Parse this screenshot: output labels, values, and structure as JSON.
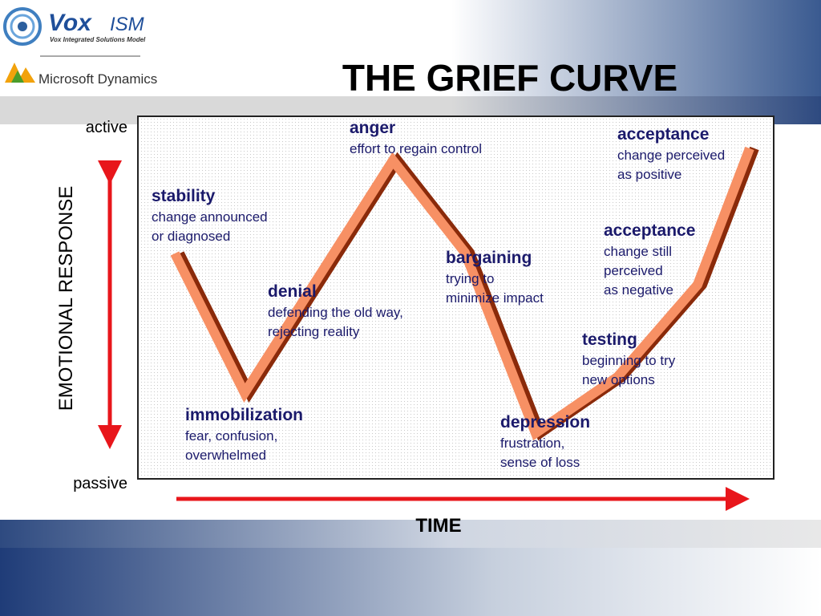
{
  "header": {
    "logo_name": "Vox",
    "logo_suffix": "ISM",
    "logo_tagline": "Vox Integrated Solutions Model",
    "partner": "Microsoft Dynamics",
    "title": "THE GRIEF CURVE"
  },
  "axes": {
    "top_label": "active",
    "bottom_label": "passive",
    "vertical_label": "EMOTIONAL RESPONSE",
    "horizontal_label": "TIME"
  },
  "stages": [
    {
      "name": "stability",
      "description": [
        "change announced",
        "or diagnosed"
      ]
    },
    {
      "name": "immobilization",
      "description": [
        "fear, confusion,",
        "overwhelmed"
      ]
    },
    {
      "name": "denial",
      "description": [
        "defending the old way,",
        "rejecting reality"
      ]
    },
    {
      "name": "anger",
      "description": [
        "effort to regain control"
      ]
    },
    {
      "name": "bargaining",
      "description": [
        "trying to",
        "minimize impact"
      ]
    },
    {
      "name": "depression",
      "description": [
        "frustration,",
        "sense of loss"
      ]
    },
    {
      "name": "testing",
      "description": [
        "beginning to try",
        "new options"
      ]
    },
    {
      "name": "acceptance",
      "description": [
        "change still",
        "perceived",
        "as negative"
      ]
    },
    {
      "name": "acceptance",
      "description": [
        "change perceived",
        "as positive"
      ]
    }
  ]
}
